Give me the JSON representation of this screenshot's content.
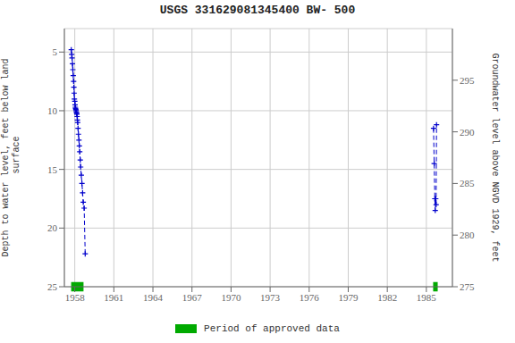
{
  "chart_data": {
    "type": "line",
    "title": "USGS 331629081345400 BW- 500",
    "ylabel": "Depth to water level, feet below land\n surface",
    "y2label": "Groundwater level above NGVD 1929, feet",
    "xlim": [
      1957.2,
      1987.0
    ],
    "xticks": [
      1958,
      1961,
      1964,
      1967,
      1970,
      1973,
      1976,
      1979,
      1982,
      1985
    ],
    "ylim": [
      25,
      3
    ],
    "yticks": [
      5,
      10,
      15,
      20,
      25
    ],
    "y2lim": [
      275,
      300
    ],
    "y2ticks": [
      275,
      280,
      285,
      290,
      295
    ],
    "grid": true,
    "legend": "bottom",
    "series": [
      {
        "color": "#0000cc",
        "marker": "plus",
        "line_style": "dashed",
        "x": [
          1957.73,
          1957.76,
          1957.79,
          1957.82,
          1957.85,
          1957.88,
          1957.91,
          1957.93,
          1957.95,
          1957.97,
          1958.0,
          1958.02,
          1958.04,
          1958.06,
          1958.08,
          1958.1,
          1958.12,
          1958.14,
          1958.16,
          1958.18,
          1958.2,
          1958.22,
          1958.25,
          1958.28,
          1958.32,
          1958.35,
          1958.38,
          1958.42,
          1958.45,
          1958.5,
          1958.55,
          1958.6,
          1958.65,
          1958.72,
          1958.8
        ],
        "values": [
          4.8,
          5.2,
          5.5,
          6.0,
          6.5,
          7.0,
          7.5,
          8.0,
          8.5,
          9.0,
          9.2,
          9.5,
          9.7,
          9.8,
          9.9,
          10.0,
          10.1,
          10.2,
          10.3,
          10.5,
          10.8,
          11.0,
          11.5,
          12.0,
          12.5,
          13.0,
          13.5,
          14.2,
          14.8,
          15.5,
          16.2,
          17.0,
          17.8,
          18.3,
          22.2
        ]
      },
      {
        "color": "#0000cc",
        "marker": "plus",
        "line_style": "dashed",
        "x": [
          1985.55,
          1985.6,
          1985.65,
          1985.68,
          1985.72,
          1985.75,
          1985.78
        ],
        "values": [
          11.5,
          14.5,
          17.5,
          18.5,
          17.5,
          18.0,
          11.2
        ]
      }
    ],
    "approved_periods": {
      "name": "Period of approved data",
      "color": "#00aa00",
      "y": 25.0,
      "height": 0.8,
      "starts": [
        1957.72,
        1985.52
      ],
      "widths": [
        0.95,
        0.35
      ]
    }
  }
}
